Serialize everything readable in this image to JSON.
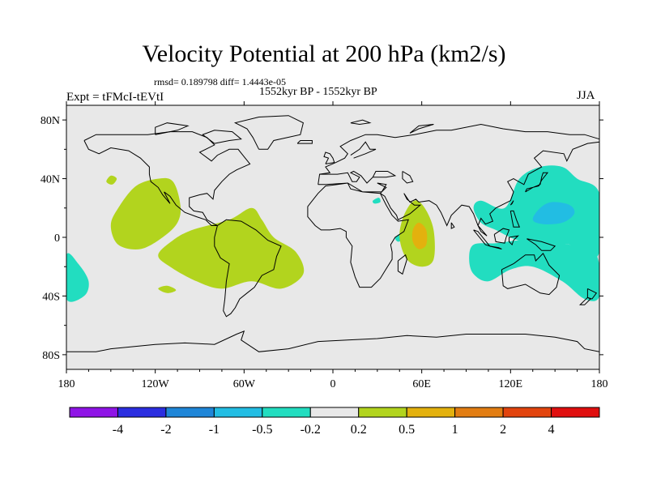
{
  "header": {
    "title": "Velocity Potential at 200 hPa (km2/s)",
    "stats": "rmsd= 0.189798 diff= 1.4443e-05",
    "subtitle": "1552kyr BP - 1552kyr BP",
    "left_label": "Expt = tFMcI-tEVtI",
    "right_label": "JJA"
  },
  "chart_data": {
    "type": "heatmap",
    "title": "Velocity Potential at 200 hPa (km2/s)",
    "projection": "cylindrical-equidistant",
    "xlim": [
      -180,
      180
    ],
    "ylim": [
      -90,
      90
    ],
    "x_ticks": [
      {
        "value": -180,
        "label": "180"
      },
      {
        "value": -120,
        "label": "120W"
      },
      {
        "value": -60,
        "label": "60W"
      },
      {
        "value": 0,
        "label": "0"
      },
      {
        "value": 60,
        "label": "60E"
      },
      {
        "value": 120,
        "label": "120E"
      },
      {
        "value": 180,
        "label": "180"
      }
    ],
    "y_ticks": [
      {
        "value": 80,
        "label": "80N"
      },
      {
        "value": 40,
        "label": "40N"
      },
      {
        "value": 0,
        "label": "0"
      },
      {
        "value": -40,
        "label": "40S"
      },
      {
        "value": -80,
        "label": "80S"
      }
    ],
    "colorbar": {
      "levels": [
        "-4",
        "-2",
        "-1",
        "-0.5",
        "-0.2",
        "0.2",
        "0.5",
        "1",
        "2",
        "4"
      ],
      "colors": [
        "#8f14e6",
        "#2b2ee0",
        "#1f86d8",
        "#22bde3",
        "#22ddc0",
        "#e8e8e8",
        "#b2d41e",
        "#e3b10e",
        "#e27d12",
        "#e2440e",
        "#e00f0f"
      ]
    },
    "regions": [
      {
        "name": "west-pacific-negative",
        "level": "-0.5 to -0.2",
        "color": "#22ddc0",
        "polygon": [
          [
            116,
            20
          ],
          [
            126,
            40
          ],
          [
            140,
            48
          ],
          [
            155,
            48
          ],
          [
            165,
            40
          ],
          [
            180,
            30
          ],
          [
            180,
            -10
          ],
          [
            170,
            -12
          ],
          [
            160,
            -5
          ],
          [
            145,
            -5
          ],
          [
            125,
            -2
          ],
          [
            110,
            5
          ],
          [
            100,
            10
          ],
          [
            95,
            20
          ],
          [
            100,
            25
          ]
        ]
      },
      {
        "name": "west-pacific-core",
        "level": "-1 to -0.5",
        "color": "#22bde3",
        "polygon": [
          [
            135,
            12
          ],
          [
            140,
            20
          ],
          [
            148,
            24
          ],
          [
            160,
            22
          ],
          [
            163,
            16
          ],
          [
            155,
            10
          ],
          [
            142,
            9
          ]
        ]
      },
      {
        "name": "south-indian-negative",
        "level": "-0.5 to -0.2",
        "color": "#22ddc0",
        "polygon": [
          [
            95,
            -5
          ],
          [
            110,
            -4
          ],
          [
            130,
            -2
          ],
          [
            160,
            -5
          ],
          [
            178,
            -12
          ],
          [
            180,
            -40
          ],
          [
            170,
            -42
          ],
          [
            155,
            -30
          ],
          [
            135,
            -20
          ],
          [
            120,
            -22
          ],
          [
            105,
            -30
          ],
          [
            95,
            -25
          ],
          [
            92,
            -15
          ]
        ]
      },
      {
        "name": "far-west-pacific-negative",
        "level": "-0.5 to -0.2",
        "color": "#22ddc0",
        "polygon": [
          [
            -180,
            -12
          ],
          [
            -172,
            -18
          ],
          [
            -165,
            -30
          ],
          [
            -168,
            -40
          ],
          [
            -180,
            -42
          ]
        ]
      },
      {
        "name": "east-african-negative",
        "level": "-0.5 to -0.2",
        "color": "#22ddc0",
        "polygon": [
          [
            42,
            0
          ],
          [
            47,
            3
          ],
          [
            48,
            -1
          ],
          [
            44,
            -3
          ]
        ]
      },
      {
        "name": "arabia-small-negative",
        "level": "-0.5 to -0.2",
        "color": "#22ddc0",
        "polygon": [
          [
            27,
            25
          ],
          [
            31,
            27
          ],
          [
            32,
            24
          ],
          [
            28,
            23
          ]
        ]
      },
      {
        "name": "east-pacific-positive",
        "level": "0.2 to 0.5",
        "color": "#b2d41e",
        "polygon": [
          [
            -145,
            20
          ],
          [
            -133,
            35
          ],
          [
            -118,
            40
          ],
          [
            -108,
            38
          ],
          [
            -103,
            22
          ],
          [
            -105,
            10
          ],
          [
            -115,
            0
          ],
          [
            -130,
            -8
          ],
          [
            -145,
            -5
          ],
          [
            -150,
            8
          ]
        ]
      },
      {
        "name": "hawaii-small-positive",
        "level": "0.2 to 0.5",
        "color": "#b2d41e",
        "polygon": [
          [
            -153,
            38
          ],
          [
            -150,
            42
          ],
          [
            -146,
            40
          ],
          [
            -149,
            36
          ]
        ]
      },
      {
        "name": "south-america-atlantic-positive",
        "level": "0.2 to 0.5",
        "color": "#b2d41e",
        "polygon": [
          [
            -118,
            -12
          ],
          [
            -108,
            -2
          ],
          [
            -95,
            5
          ],
          [
            -70,
            12
          ],
          [
            -55,
            20
          ],
          [
            -48,
            12
          ],
          [
            -40,
            0
          ],
          [
            -25,
            -10
          ],
          [
            -20,
            -25
          ],
          [
            -35,
            -35
          ],
          [
            -55,
            -30
          ],
          [
            -75,
            -35
          ],
          [
            -92,
            -30
          ],
          [
            -110,
            -20
          ]
        ]
      },
      {
        "name": "south-pacific-small-positive",
        "level": "0.2 to 0.5",
        "color": "#b2d41e",
        "polygon": [
          [
            -118,
            -35
          ],
          [
            -112,
            -38
          ],
          [
            -106,
            -36
          ],
          [
            -112,
            -33
          ]
        ]
      },
      {
        "name": "indian-ocean-positive",
        "level": "0.2 to 0.5",
        "color": "#b2d41e",
        "polygon": [
          [
            48,
            15
          ],
          [
            55,
            25
          ],
          [
            62,
            20
          ],
          [
            68,
            5
          ],
          [
            68,
            -15
          ],
          [
            60,
            -20
          ],
          [
            50,
            -15
          ],
          [
            45,
            0
          ]
        ]
      },
      {
        "name": "indian-ocean-core",
        "level": "0.5 to 1",
        "color": "#e3b10e",
        "polygon": [
          [
            54,
            5
          ],
          [
            58,
            10
          ],
          [
            63,
            5
          ],
          [
            63,
            -5
          ],
          [
            58,
            -8
          ],
          [
            54,
            -3
          ]
        ]
      }
    ]
  }
}
